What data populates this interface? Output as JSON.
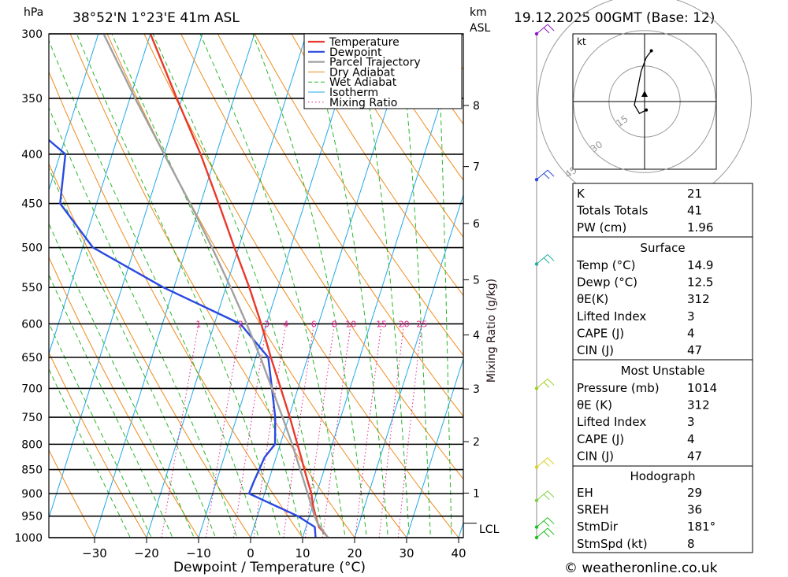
{
  "header": {
    "hpa_unit": "hPa",
    "location": "38°52'N  1°23'E  41m  ASL",
    "km_unit": "km",
    "asl_unit": "ASL",
    "datetime": "19.12.2025  00GMT  (Base: 12)"
  },
  "footer": {
    "copyright": "© weatheronline.co.uk"
  },
  "colors": {
    "temperature": "#e8392a",
    "dewpoint": "#2a49e0",
    "parcel": "#a0a0a0",
    "dry_adiabat": "#f08a1c",
    "wet_adiabat": "#2ab62a",
    "isotherm": "#21a8e8",
    "mixing_ratio": "#e0208a"
  },
  "chart_data": {
    "type": "line",
    "title": "Skew-T log-P diagram",
    "xlabel": "Dewpoint / Temperature (°C)",
    "ylabel": "hPa",
    "xlim": [
      -40,
      40
    ],
    "ylim": [
      1000,
      300
    ],
    "x_ticks": [
      -30,
      -20,
      -10,
      0,
      10,
      20,
      30,
      40
    ],
    "x_tick_labels": [
      "−30",
      "−20",
      "−10",
      "0",
      "10",
      "20",
      "30",
      "40"
    ],
    "pressure_levels": [
      300,
      350,
      400,
      450,
      500,
      550,
      600,
      650,
      700,
      750,
      800,
      850,
      900,
      950,
      1000
    ],
    "km_ticks": [
      {
        "km": "8",
        "p": 356
      },
      {
        "km": "7",
        "p": 412
      },
      {
        "km": "6",
        "p": 472
      },
      {
        "km": "5",
        "p": 540
      },
      {
        "km": "4",
        "p": 616
      },
      {
        "km": "3",
        "p": 701
      },
      {
        "km": "2",
        "p": 795
      },
      {
        "km": "1",
        "p": 899
      }
    ],
    "lcl_label": "LCL",
    "lcl_pressure": 966,
    "mixing_ratio_axis_label": "Mixing Ratio (g/kg)",
    "mixing_ratio_labels": [
      "1",
      "2",
      "3",
      "4",
      "6",
      "8",
      "10",
      "15",
      "20",
      "25"
    ],
    "legend": [
      "Temperature",
      "Dewpoint",
      "Parcel Trajectory",
      "Dry Adiabat",
      "Wet Adiabat",
      "Isotherm",
      "Mixing Ratio"
    ],
    "series": [
      {
        "name": "Temperature",
        "points": [
          [
            1000,
            14.9
          ],
          [
            990,
            14
          ],
          [
            975,
            12.5
          ],
          [
            950,
            11.2
          ],
          [
            925,
            10
          ],
          [
            900,
            9
          ],
          [
            875,
            7.6
          ],
          [
            850,
            6.2
          ],
          [
            825,
            4.8
          ],
          [
            800,
            3.3
          ],
          [
            750,
            0.2
          ],
          [
            700,
            -3.3
          ],
          [
            650,
            -7.1
          ],
          [
            600,
            -11
          ],
          [
            550,
            -15.5
          ],
          [
            500,
            -20.8
          ],
          [
            450,
            -26.5
          ],
          [
            400,
            -33
          ],
          [
            350,
            -41
          ],
          [
            300,
            -50
          ]
        ]
      },
      {
        "name": "Dewpoint",
        "points": [
          [
            1000,
            12.5
          ],
          [
            975,
            11.7
          ],
          [
            950,
            7.8
          ],
          [
            925,
            2.5
          ],
          [
            900,
            -3
          ],
          [
            875,
            -2.8
          ],
          [
            850,
            -2.5
          ],
          [
            825,
            -2.2
          ],
          [
            800,
            -1
          ],
          [
            750,
            -2.6
          ],
          [
            700,
            -5
          ],
          [
            650,
            -7.6
          ],
          [
            600,
            -15
          ],
          [
            550,
            -32
          ],
          [
            500,
            -48
          ],
          [
            450,
            -57
          ],
          [
            400,
            -59
          ],
          [
            350,
            -75
          ],
          [
            300,
            -81
          ]
        ]
      },
      {
        "name": "Parcel Trajectory",
        "points": [
          [
            1000,
            14.9
          ],
          [
            966,
            12
          ],
          [
            950,
            11
          ],
          [
            900,
            8.3
          ],
          [
            850,
            5.4
          ],
          [
            800,
            2.3
          ],
          [
            750,
            -1.2
          ],
          [
            700,
            -5
          ],
          [
            650,
            -9.1
          ],
          [
            600,
            -13.8
          ],
          [
            550,
            -19.1
          ],
          [
            500,
            -25.1
          ],
          [
            450,
            -32
          ],
          [
            400,
            -40
          ],
          [
            350,
            -49
          ],
          [
            300,
            -59
          ]
        ]
      }
    ],
    "wind_barbs": [
      {
        "p": 300,
        "color": "#8a1cc8"
      },
      {
        "p": 425,
        "color": "#2a49e0"
      },
      {
        "p": 520,
        "color": "#20b0a0"
      },
      {
        "p": 700,
        "color": "#a0d020"
      },
      {
        "p": 845,
        "color": "#d8d020"
      },
      {
        "p": 915,
        "color": "#80d040"
      },
      {
        "p": 975,
        "color": "#20c020"
      },
      {
        "p": 1000,
        "color": "#20c020"
      }
    ]
  },
  "hodograph": {
    "unit": "kt",
    "ring_labels": [
      "15",
      "30",
      "45"
    ],
    "trace": [
      [
        0.5,
        -2.5
      ],
      [
        -1.5,
        -3.5
      ],
      [
        -3,
        -1
      ],
      [
        -2,
        4
      ],
      [
        -1,
        9
      ],
      [
        0.5,
        13
      ],
      [
        2,
        15
      ]
    ]
  },
  "table": {
    "summary": [
      {
        "label": "K",
        "value": "21"
      },
      {
        "label": "Totals Totals",
        "value": "41"
      },
      {
        "label": "PW (cm)",
        "value": "1.96"
      }
    ],
    "surface": {
      "title": "Surface",
      "rows": [
        {
          "label": "Temp (°C)",
          "value": "14.9"
        },
        {
          "label": "Dewp (°C)",
          "value": "12.5"
        },
        {
          "label": "θE(K)",
          "value": "312"
        },
        {
          "label": "Lifted Index",
          "value": "3"
        },
        {
          "label": "CAPE (J)",
          "value": "4"
        },
        {
          "label": "CIN (J)",
          "value": "47"
        }
      ]
    },
    "most_unstable": {
      "title": "Most Unstable",
      "rows": [
        {
          "label": "Pressure (mb)",
          "value": "1014"
        },
        {
          "label": "θE (K)",
          "value": "312"
        },
        {
          "label": "Lifted Index",
          "value": "3"
        },
        {
          "label": "CAPE (J)",
          "value": "4"
        },
        {
          "label": "CIN (J)",
          "value": "47"
        }
      ]
    },
    "hodograph": {
      "title": "Hodograph",
      "rows": [
        {
          "label": "EH",
          "value": "29"
        },
        {
          "label": "SREH",
          "value": "36"
        },
        {
          "label": "StmDir",
          "value": "181°"
        },
        {
          "label": "StmSpd (kt)",
          "value": "8"
        }
      ]
    }
  }
}
